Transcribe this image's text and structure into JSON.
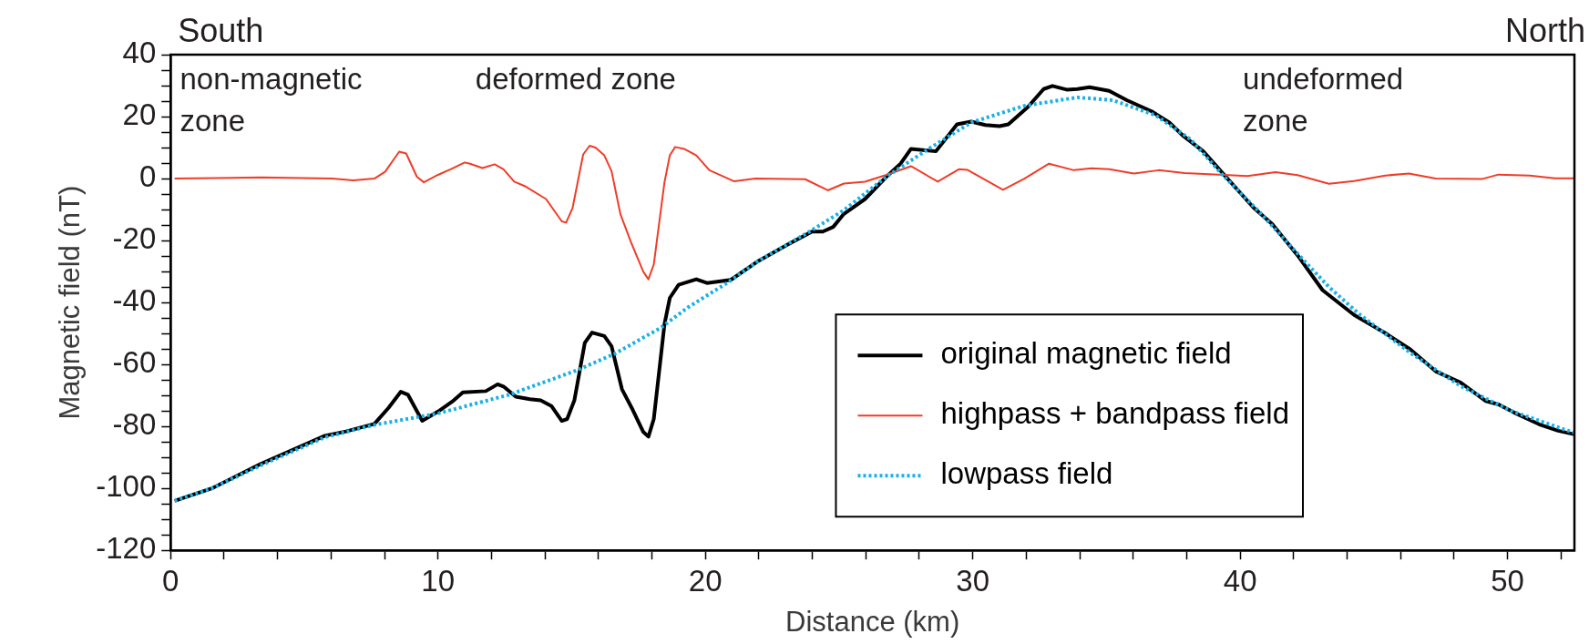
{
  "chart_data": {
    "type": "line",
    "xlabel": "Distance (km)",
    "ylabel": "Magnetic field (nT)",
    "annotations": [
      "South",
      "North",
      "non-magnetic zone",
      "deformed zone",
      "undeformed zone"
    ],
    "xlim": [
      0,
      52.5
    ],
    "ylim": [
      -120,
      40
    ],
    "xticks": [
      0,
      {
        "value": 2,
        "label": null
      },
      {
        "value": 4,
        "label": null
      },
      {
        "value": 6,
        "label": null
      },
      {
        "value": 8,
        "label": null
      },
      10,
      {
        "value": 12,
        "label": null
      },
      {
        "value": 14,
        "label": null
      },
      {
        "value": 16,
        "label": null
      },
      {
        "value": 18,
        "label": null
      },
      20,
      {
        "value": 22,
        "label": null
      },
      {
        "value": 24,
        "label": null
      },
      {
        "value": 26,
        "label": null
      },
      {
        "value": 28,
        "label": null
      },
      30,
      {
        "value": 32,
        "label": null
      },
      {
        "value": 34,
        "label": null
      },
      {
        "value": 36,
        "label": null
      },
      {
        "value": 38,
        "label": null
      },
      40,
      {
        "value": 42,
        "label": null
      },
      {
        "value": 44,
        "label": null
      },
      {
        "value": 46,
        "label": null
      },
      {
        "value": 48,
        "label": null
      },
      50,
      {
        "value": 52,
        "label": null
      }
    ],
    "yticks": [
      -120,
      {
        "value": -115,
        "label": null
      },
      {
        "value": -110,
        "label": null
      },
      {
        "value": -105,
        "label": null
      },
      -100,
      {
        "value": -95,
        "label": null
      },
      {
        "value": -90,
        "label": null
      },
      {
        "value": -85,
        "label": null
      },
      -80,
      {
        "value": -75,
        "label": null
      },
      {
        "value": -70,
        "label": null
      },
      {
        "value": -65,
        "label": null
      },
      -60,
      {
        "value": -55,
        "label": null
      },
      {
        "value": -50,
        "label": null
      },
      {
        "value": -45,
        "label": null
      },
      -40,
      {
        "value": -35,
        "label": null
      },
      {
        "value": -30,
        "label": null
      },
      {
        "value": -25,
        "label": null
      },
      -20,
      {
        "value": -15,
        "label": null
      },
      {
        "value": -10,
        "label": null
      },
      {
        "value": -5,
        "label": null
      },
      0,
      {
        "value": 5,
        "label": null
      },
      {
        "value": 10,
        "label": null
      },
      {
        "value": 15,
        "label": null
      },
      20,
      {
        "value": 25,
        "label": null
      },
      {
        "value": 30,
        "label": null
      },
      {
        "value": 35,
        "label": null
      },
      40
    ],
    "legend": "bottom right",
    "marker": "none",
    "series": [
      {
        "name": "original magnetic field",
        "color": "#000000",
        "line_style": "solid",
        "x": [
          0.15,
          1.54,
          3.39,
          5.77,
          6.56,
          7.62,
          8.15,
          8.61,
          8.88,
          9.41,
          10.0,
          10.53,
          10.93,
          11.79,
          12.23,
          12.45,
          12.91,
          13.44,
          13.84,
          14.24,
          14.63,
          14.83,
          15.1,
          15.49,
          15.76,
          16.22,
          16.49,
          16.88,
          17.28,
          17.68,
          17.87,
          18.07,
          18.47,
          18.67,
          19.0,
          19.66,
          20.06,
          20.95,
          22.0,
          23.06,
          23.99,
          24.39,
          24.78,
          25.18,
          25.97,
          26.77,
          27.3,
          27.69,
          28.62,
          29.41,
          29.94,
          30.47,
          31.0,
          31.33,
          32.06,
          32.65,
          32.98,
          33.51,
          33.91,
          34.37,
          35.1,
          35.76,
          36.69,
          37.35,
          37.88,
          38.62,
          39.33,
          40.5,
          41.2,
          42.15,
          43.08,
          44.26,
          45.43,
          46.37,
          47.31,
          48.25,
          49.19,
          49.66,
          50.24,
          51.18,
          51.89,
          52.47
        ],
        "values": [
          -104,
          -100,
          -92,
          -83,
          -81.6,
          -79.2,
          -74,
          -68.8,
          -69.8,
          -78.2,
          -75.2,
          -72,
          -69,
          -68.6,
          -66.4,
          -67.1,
          -70.4,
          -71.2,
          -71.6,
          -73.4,
          -78.2,
          -77.6,
          -71.6,
          -53,
          -49.7,
          -50.8,
          -54.1,
          -68,
          -74.6,
          -81.8,
          -83.3,
          -77.6,
          -47,
          -38.5,
          -34.3,
          -32.5,
          -33.7,
          -32.7,
          -26.5,
          -21.4,
          -17.1,
          -17.1,
          -15.6,
          -11.4,
          -6.6,
          0.6,
          4.8,
          9.6,
          8.8,
          17.5,
          18.4,
          17.3,
          16.9,
          17.5,
          23.1,
          28.9,
          29.9,
          28.7,
          28.9,
          29.5,
          28.3,
          25.3,
          21.7,
          18.1,
          13.7,
          8.8,
          1.9,
          -9.4,
          -14.7,
          -24.8,
          -36,
          -44,
          -49.9,
          -55.2,
          -62.2,
          -65.9,
          -71.8,
          -72.9,
          -75.5,
          -79.3,
          -81.4,
          -82.5
        ]
      },
      {
        "name": "highpass + bandpass field",
        "color": "#f03c28",
        "line_style": "solid",
        "x": [
          0.15,
          3.39,
          6.04,
          6.83,
          7.62,
          8.02,
          8.55,
          8.81,
          9.21,
          9.47,
          10.0,
          10.47,
          11.0,
          11.2,
          11.66,
          12.12,
          12.45,
          12.85,
          13.24,
          14.04,
          14.63,
          14.79,
          15.03,
          15.43,
          15.67,
          15.89,
          16.22,
          16.49,
          16.82,
          17.21,
          17.68,
          17.87,
          18.07,
          18.47,
          18.67,
          18.87,
          19.2,
          19.66,
          20.15,
          21.08,
          21.87,
          23.73,
          24.58,
          25.18,
          25.97,
          26.77,
          27.69,
          28.69,
          29.48,
          29.81,
          31.13,
          31.93,
          32.85,
          33.78,
          34.44,
          35.1,
          36.03,
          36.95,
          37.92,
          39.21,
          40.27,
          41.32,
          42.15,
          43.32,
          44.26,
          45.43,
          46.31,
          47.31,
          49.07,
          49.66,
          50.83,
          51.77,
          52.47
        ],
        "values": [
          0,
          0.4,
          0,
          -0.6,
          0,
          2.2,
          8.7,
          8.1,
          0.6,
          -1.2,
          1.2,
          3,
          5.2,
          4.8,
          3.4,
          4.6,
          3,
          -1,
          -2.4,
          -6.6,
          -13.8,
          -14.2,
          -9.6,
          7.8,
          10.6,
          10,
          7.5,
          2.4,
          -11.4,
          -20.4,
          -30.1,
          -32.5,
          -27.7,
          -1.2,
          7.5,
          10.2,
          9.6,
          7.5,
          2.7,
          -0.9,
          0,
          -0.2,
          -3.8,
          -1.6,
          -1,
          1.2,
          4,
          -1,
          3,
          2.8,
          -3.6,
          0,
          4.8,
          2.7,
          3.3,
          3,
          1.6,
          2.7,
          1.8,
          1.3,
          0.8,
          2.1,
          1.1,
          -1.7,
          -0.8,
          1,
          1.6,
          0,
          -0.1,
          1.3,
          1,
          0.1,
          0.1
        ]
      },
      {
        "name": "lowpass field",
        "color": "#1ab0e8",
        "line_style": "dotted",
        "x": [
          0.15,
          1.54,
          3.39,
          5.77,
          7.62,
          10.0,
          12.65,
          15.16,
          16.62,
          18.34,
          19.36,
          20.81,
          22.0,
          23.99,
          25.18,
          26.77,
          28.35,
          29.94,
          31.93,
          33.91,
          35.23,
          36.82,
          38.14,
          39.33,
          40.74,
          42.38,
          43.32,
          44.49,
          46.37,
          48.25,
          50.13,
          52.47
        ],
        "values": [
          -104,
          -100,
          -92.5,
          -83.5,
          -79.5,
          -75.8,
          -69.8,
          -62,
          -56.5,
          -48.1,
          -41.5,
          -33.7,
          -26.5,
          -16.6,
          -10.2,
          0.6,
          9.6,
          18.1,
          23.5,
          26.2,
          25.3,
          20.5,
          12.7,
          1.3,
          -11,
          -26.4,
          -35,
          -44,
          -56.3,
          -67,
          -75,
          -82
        ]
      }
    ]
  }
}
